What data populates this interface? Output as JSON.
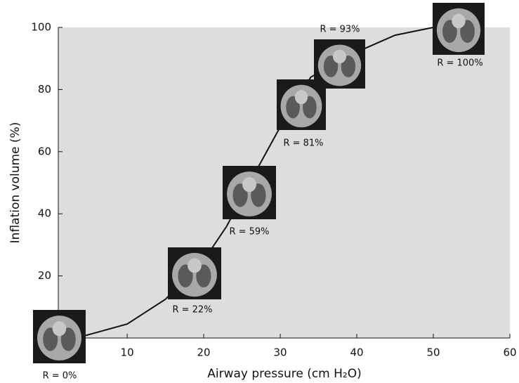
{
  "chart_data": {
    "type": "line",
    "x_label": "Airway pressure (cm H₂O)",
    "y_label": "Inflation volume (%)",
    "x": [
      4.4,
      10,
      15,
      20,
      23,
      26,
      30,
      34,
      39,
      45,
      50
    ],
    "values": [
      0.7,
      4.5,
      12.5,
      25,
      36,
      50,
      68,
      84,
      91,
      97.5,
      100
    ],
    "color": "#111111",
    "xlim": [
      1,
      60
    ],
    "xticks": [
      10,
      20,
      30,
      40,
      50,
      60
    ],
    "ylim": [
      0,
      100
    ],
    "yticks": [
      20,
      40,
      60,
      80,
      100
    ],
    "annotations": [
      "R = 0%",
      "R = 22%",
      "R = 59%",
      "R = 81%",
      "R = 93%",
      "R = 100%"
    ]
  }
}
